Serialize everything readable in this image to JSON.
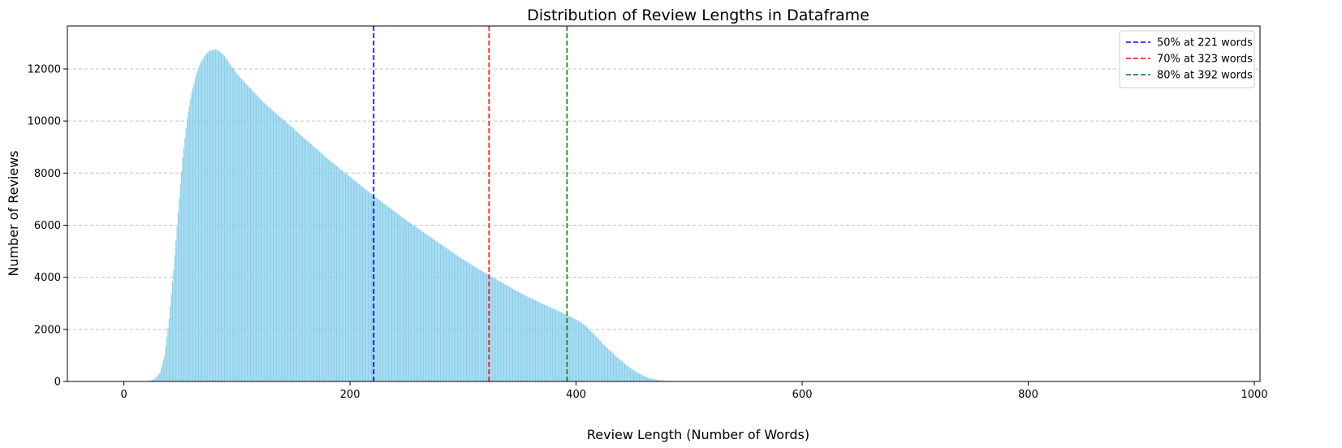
{
  "chart_data": {
    "type": "bar",
    "title": "Distribution of Review Lengths in Dataframe",
    "xlabel": "Review Length (Number of Words)",
    "ylabel": "Number of Reviews",
    "xlim": [
      -50,
      1005
    ],
    "ylim": [
      0,
      13650
    ],
    "xticks": [
      0,
      200,
      400,
      600,
      800,
      1000
    ],
    "yticks": [
      0,
      2000,
      4000,
      6000,
      8000,
      10000,
      12000
    ],
    "grid": "y-dashed",
    "legend_position": "top-right",
    "bar_color": "#87CEEB",
    "bin_width": 1,
    "series": [
      {
        "x_start": 0,
        "step": 4,
        "values": [
          0,
          0,
          0,
          0,
          0,
          10,
          40,
          120,
          350,
          1000,
          2400,
          4300,
          6500,
          8600,
          10100,
          11100,
          11800,
          12250,
          12550,
          12700,
          12750,
          12700,
          12550,
          12320,
          12050,
          11820,
          11620,
          11430,
          11240,
          11060,
          10880,
          10700,
          10540,
          10390,
          10240,
          10090,
          9940,
          9790,
          9640,
          9480,
          9320,
          9170,
          9020,
          8870,
          8720,
          8560,
          8420,
          8280,
          8140,
          8000,
          7860,
          7720,
          7580,
          7440,
          7300,
          7160,
          7030,
          6900,
          6770,
          6640,
          6510,
          6380,
          6250,
          6120,
          6000,
          5880,
          5760,
          5640,
          5520,
          5400,
          5280,
          5160,
          5040,
          4920,
          4800,
          4690,
          4580,
          4470,
          4360,
          4260,
          4160,
          4060,
          3960,
          3860,
          3760,
          3660,
          3560,
          3460,
          3370,
          3280,
          3190,
          3110,
          3030,
          2950,
          2870,
          2790,
          2710,
          2630,
          2550,
          2470,
          2380,
          2280,
          2150,
          1990,
          1810,
          1620,
          1440,
          1270,
          1110,
          950,
          800,
          650,
          520,
          400,
          300,
          210,
          140,
          90,
          55,
          35,
          22,
          14,
          10,
          7,
          5,
          4,
          3,
          2,
          2,
          1,
          1,
          1,
          0,
          0,
          0,
          0,
          0,
          0,
          0,
          0,
          0,
          0,
          0,
          0,
          0,
          0,
          0,
          0,
          0,
          0,
          0,
          0,
          0,
          0,
          0,
          0,
          0,
          0,
          0,
          0,
          0,
          0,
          0,
          0,
          0,
          0,
          0,
          0,
          0,
          0,
          0,
          0,
          0,
          0,
          0,
          0,
          0,
          0,
          0,
          0,
          0,
          0,
          0,
          0,
          0,
          0,
          0,
          0,
          0,
          0,
          0,
          0,
          0,
          0,
          0,
          0,
          0,
          0,
          0,
          0,
          0,
          0,
          0,
          0,
          0,
          0,
          0,
          0,
          0,
          0,
          0,
          0,
          0,
          0,
          0,
          0,
          0,
          0,
          0,
          0,
          0,
          0,
          0,
          0,
          0,
          0,
          0,
          0,
          0,
          0,
          0,
          0,
          0,
          0,
          0,
          0,
          0
        ]
      }
    ],
    "reference_lines": [
      {
        "x": 221,
        "color": "#0000ff",
        "label": "50% at 221 words"
      },
      {
        "x": 323,
        "color": "#ff0000",
        "label": "70% at 323 words"
      },
      {
        "x": 392,
        "color": "#008000",
        "label": "80% at 392 words"
      }
    ]
  }
}
